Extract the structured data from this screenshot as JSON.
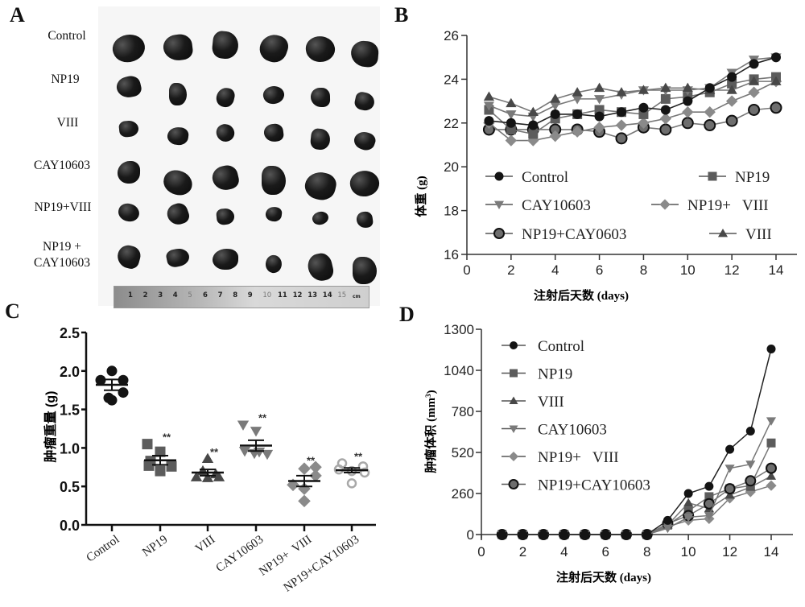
{
  "panels": {
    "a": {
      "letter": "A"
    },
    "b": {
      "letter": "B"
    },
    "c": {
      "letter": "C"
    },
    "d": {
      "letter": "D"
    }
  },
  "photo": {
    "row_labels": [
      "Control",
      "NP19",
      "VIII",
      "CAY10603",
      "NP19+VIII"
    ],
    "last_row_label_line1": "NP19 +",
    "last_row_label_line2": "CAY10603",
    "ruler_numbers": [
      "1",
      "2",
      "3",
      "4",
      "5",
      "6",
      "7",
      "8",
      "9",
      "10",
      "11",
      "12",
      "13",
      "14",
      "15"
    ],
    "ruler_unit": "cm"
  },
  "colors": {
    "Control": "#141414",
    "NP19": "#5c5c5c",
    "VIII": "#484848",
    "CAY10603": "#7a7a7a",
    "NP19+VIII": "#8a8a8a",
    "NP19+CAY": "#6e6e6e",
    "NP19+CAY_open": "#a8a8a8"
  },
  "chart_data": [
    {
      "id": "B",
      "type": "line",
      "title": "",
      "xlabel": "注射后天数 (days)",
      "ylabel": "体重 (g)",
      "xlim": [
        0,
        14
      ],
      "ylim": [
        16,
        26
      ],
      "xticks": [
        0,
        2,
        4,
        6,
        8,
        10,
        12,
        14
      ],
      "yticks": [
        16,
        18,
        20,
        22,
        24,
        26
      ],
      "legend_position": "bottom-inside",
      "x": [
        1,
        2,
        3,
        4,
        5,
        6,
        7,
        8,
        9,
        10,
        11,
        12,
        13,
        14
      ],
      "series": [
        {
          "name": "Control",
          "marker": "circle",
          "values": [
            22.1,
            22.0,
            21.9,
            22.4,
            22.4,
            22.3,
            22.5,
            22.7,
            22.6,
            23.0,
            23.6,
            24.1,
            24.7,
            25.0
          ]
        },
        {
          "name": "NP19",
          "marker": "square",
          "values": [
            22.6,
            21.7,
            21.5,
            22.2,
            22.4,
            22.6,
            22.5,
            22.4,
            23.1,
            23.2,
            23.4,
            23.8,
            24.0,
            24.1
          ]
        },
        {
          "name": "CAY10603",
          "marker": "triangle-down",
          "values": [
            22.8,
            22.4,
            22.3,
            22.8,
            23.1,
            23.1,
            23.3,
            23.5,
            23.5,
            23.5,
            23.6,
            24.3,
            24.9,
            25.0
          ]
        },
        {
          "name": "NP19+   VIII",
          "marker": "diamond",
          "values": [
            22.0,
            21.2,
            21.2,
            21.4,
            21.6,
            21.8,
            21.9,
            22.0,
            22.2,
            22.5,
            22.5,
            23.0,
            23.4,
            23.9
          ]
        },
        {
          "name": "NP19+CAY0603",
          "marker": "circle-outlined",
          "values": [
            21.7,
            21.7,
            21.7,
            21.7,
            21.7,
            21.6,
            21.3,
            21.8,
            21.7,
            22.0,
            21.9,
            22.1,
            22.6,
            22.7
          ]
        },
        {
          "name": "VIII",
          "marker": "triangle-up",
          "values": [
            23.2,
            22.9,
            22.5,
            23.1,
            23.4,
            23.6,
            23.4,
            23.5,
            23.6,
            23.6,
            23.5,
            23.5,
            23.9,
            23.9
          ]
        }
      ]
    },
    {
      "id": "C",
      "type": "scatter",
      "title": "",
      "xlabel": "",
      "ylabel": "肿瘤重量 (g)",
      "ylim": [
        0,
        2.5
      ],
      "yticks": [
        "0.0",
        "0.5",
        "1.0",
        "1.5",
        "2.0",
        "2.5"
      ],
      "categories": [
        "Control",
        "NP19",
        "VIII",
        "CAY10603",
        "NP19+  VIII",
        "NP19+CAY10603"
      ],
      "significance": [
        "",
        "**",
        "**",
        "**",
        "**",
        "**"
      ],
      "groups": [
        {
          "name": "Control",
          "marker": "circle",
          "points": [
            2.0,
            1.88,
            1.88,
            1.72,
            1.62,
            1.65
          ],
          "mean": 1.82,
          "sem": 0.07
        },
        {
          "name": "NP19",
          "marker": "square",
          "points": [
            1.05,
            0.95,
            0.83,
            0.76,
            0.7,
            0.77
          ],
          "mean": 0.84,
          "sem": 0.06
        },
        {
          "name": "VIII",
          "marker": "triangle-up",
          "points": [
            0.86,
            0.7,
            0.66,
            0.62,
            0.61,
            0.62
          ],
          "mean": 0.68,
          "sem": 0.04
        },
        {
          "name": "CAY10603",
          "marker": "triangle-down",
          "points": [
            1.3,
            1.22,
            0.96,
            0.95,
            0.92,
            0.93
          ],
          "mean": 1.03,
          "sem": 0.07
        },
        {
          "name": "NP19+VIII",
          "marker": "diamond",
          "points": [
            0.73,
            0.75,
            0.64,
            0.52,
            0.47,
            0.31
          ],
          "mean": 0.57,
          "sem": 0.07
        },
        {
          "name": "NP19+CAY10603",
          "marker": "circle-open",
          "points": [
            0.8,
            0.76,
            0.72,
            0.7,
            0.68,
            0.54
          ],
          "mean": 0.71,
          "sem": 0.03
        }
      ]
    },
    {
      "id": "D",
      "type": "line",
      "title": "",
      "xlabel": "注射后天数 (days)",
      "ylabel": "肿瘤体积 (mm³)",
      "ylabel_main": "肿瘤体积 (mm",
      "ylabel_sup": "3",
      "ylabel_end": ")",
      "xlim": [
        0,
        14
      ],
      "ylim": [
        0,
        1300
      ],
      "xticks": [
        0,
        2,
        4,
        6,
        8,
        10,
        12,
        14
      ],
      "yticks": [
        0,
        260,
        520,
        780,
        1040,
        1300
      ],
      "legend_position": "top-left",
      "x": [
        1,
        2,
        3,
        4,
        5,
        6,
        7,
        8,
        9,
        10,
        11,
        12,
        13,
        14
      ],
      "series": [
        {
          "name": "Control",
          "marker": "circle",
          "values": [
            0,
            0,
            0,
            0,
            0,
            0,
            0,
            0,
            90,
            260,
            305,
            540,
            655,
            1175
          ]
        },
        {
          "name": "NP19",
          "marker": "square",
          "values": [
            0,
            0,
            0,
            0,
            0,
            0,
            0,
            0,
            60,
            150,
            240,
            290,
            310,
            580
          ]
        },
        {
          "name": "VIII",
          "marker": "triangle-up",
          "values": [
            0,
            0,
            0,
            0,
            0,
            0,
            0,
            0,
            60,
            200,
            165,
            250,
            300,
            370
          ]
        },
        {
          "name": "CAY10603",
          "marker": "triangle-down",
          "values": [
            0,
            0,
            0,
            0,
            0,
            0,
            0,
            0,
            40,
            110,
            120,
            420,
            445,
            720
          ]
        },
        {
          "name": "NP19+   VIII",
          "marker": "diamond",
          "values": [
            0,
            0,
            0,
            0,
            0,
            0,
            0,
            0,
            50,
            90,
            100,
            230,
            270,
            310
          ]
        },
        {
          "name": "NP19+CAY10603",
          "marker": "circle-outlined",
          "values": [
            0,
            0,
            0,
            0,
            0,
            0,
            0,
            0,
            70,
            120,
            195,
            290,
            340,
            420
          ]
        }
      ]
    }
  ]
}
